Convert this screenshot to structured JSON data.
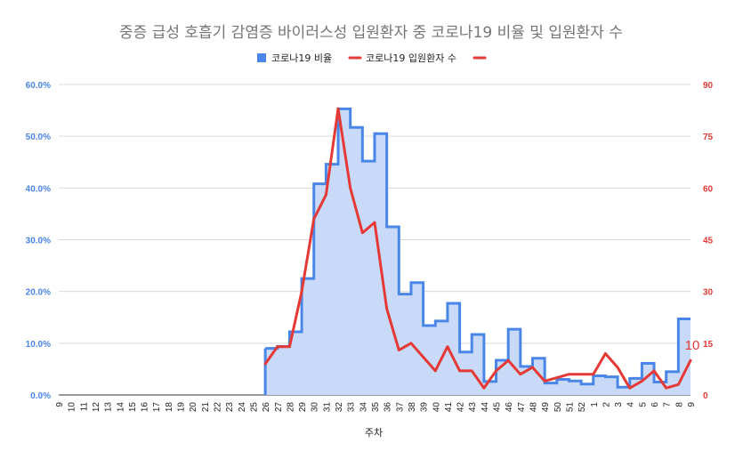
{
  "chart_data": {
    "type": "combo-stepped-area-line",
    "title": "중증 급성 호흡기 감염증 바이러스성 입원환자 중 코로나19 비율 및 입원환자 수",
    "xlabel": "주차",
    "legend": {
      "placement": "top",
      "entries": [
        "코로나19 비율",
        "코로나19 입원환자 수",
        ""
      ]
    },
    "colors": {
      "ratio": "#4a86e8",
      "ratio_fill": "#c9daf8",
      "admissions": "#e53935",
      "grid": "#d9d9d9"
    },
    "left_axis": {
      "min": 0,
      "max": 0.6,
      "ticks": [
        "0.0%",
        "10.0%",
        "20.0%",
        "30.0%",
        "40.0%",
        "50.0%",
        "60.0%"
      ]
    },
    "right_axis": {
      "min": 0,
      "max": 90,
      "ticks": [
        "0",
        "15",
        "30",
        "45",
        "60",
        "75",
        "90"
      ]
    },
    "categories": [
      "9",
      "10",
      "11",
      "12",
      "13",
      "14",
      "15",
      "16",
      "17",
      "18",
      "19",
      "20",
      "21",
      "22",
      "23",
      "24",
      "25",
      "26",
      "27",
      "28",
      "29",
      "30",
      "31",
      "32",
      "33",
      "34",
      "35",
      "36",
      "37",
      "38",
      "39",
      "40",
      "41",
      "42",
      "43",
      "44",
      "45",
      "46",
      "47",
      "48",
      "49",
      "50",
      "51",
      "52",
      "1",
      "2",
      "3",
      "4",
      "5",
      "6",
      "7",
      "8",
      "9"
    ],
    "series": [
      {
        "name": "코로나19 비율",
        "axis": "left",
        "values": [
          null,
          null,
          null,
          null,
          null,
          null,
          null,
          null,
          null,
          null,
          null,
          null,
          null,
          null,
          null,
          null,
          null,
          0.09,
          0.094,
          0.122,
          0.225,
          0.408,
          0.446,
          0.553,
          0.517,
          0.452,
          0.505,
          0.325,
          0.195,
          0.217,
          0.134,
          0.143,
          0.177,
          0.083,
          0.117,
          0.026,
          0.067,
          0.127,
          0.055,
          0.071,
          0.023,
          0.03,
          0.027,
          0.021,
          0.037,
          0.035,
          0.015,
          0.032,
          0.061,
          0.025,
          0.045,
          0.147,
          0.147
        ]
      },
      {
        "name": "코로나19 입원환자 수",
        "axis": "right",
        "values": [
          null,
          null,
          null,
          null,
          null,
          null,
          null,
          null,
          null,
          null,
          null,
          null,
          null,
          null,
          null,
          null,
          null,
          9,
          14,
          14,
          30,
          51,
          58,
          83,
          60,
          47,
          50,
          25,
          13,
          15,
          11,
          7,
          14,
          7,
          7,
          2,
          7,
          10,
          6,
          8,
          4,
          5,
          6,
          6,
          6,
          12,
          8,
          2,
          4,
          7,
          2,
          3,
          10
        ]
      }
    ],
    "data_labels": [
      {
        "series": "코로나19 입원환자 수",
        "index": 52,
        "text": "10"
      }
    ]
  }
}
